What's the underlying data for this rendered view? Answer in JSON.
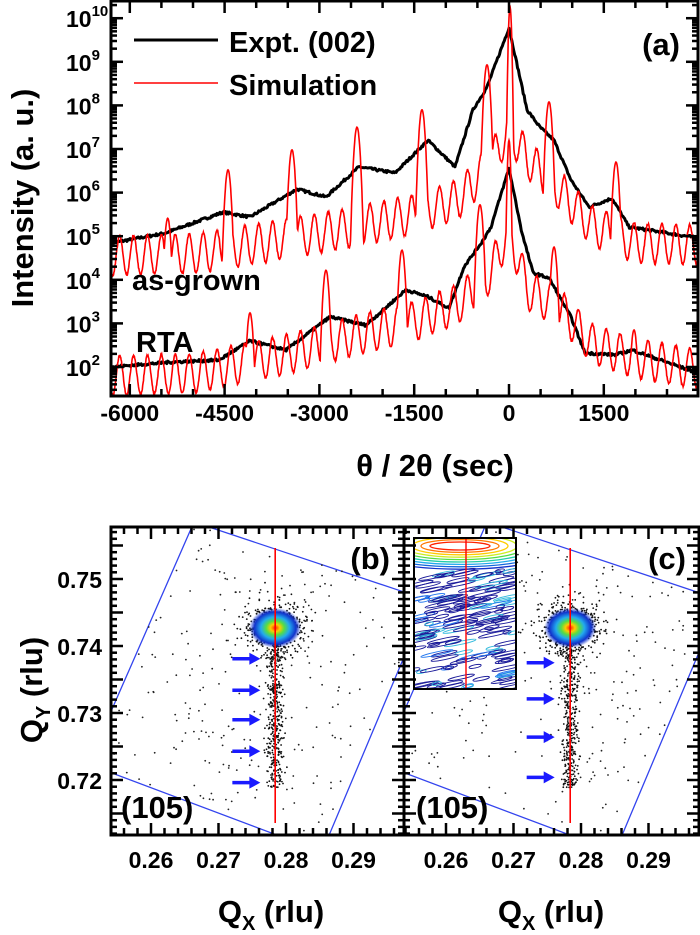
{
  "chart_data": [
    {
      "type": "line",
      "panel_label": "(a)",
      "xlabel": "θ / 2θ (sec)",
      "ylabel": "Intensity (a. u.)",
      "xlim": [
        -6300,
        2990
      ],
      "ylim_log10": [
        1.33,
        10.4
      ],
      "yscale": "log",
      "xticks": [
        "-6000",
        "-4500",
        "-3000",
        "-1500",
        "0",
        "1500"
      ],
      "xtick_values": [
        -6000,
        -4500,
        -3000,
        -1500,
        0,
        1500
      ],
      "ytick_base": "10",
      "ytick_exponents": [
        "2",
        "3",
        "4",
        "5",
        "6",
        "7",
        "8",
        "9",
        "10"
      ],
      "legend": {
        "position": "top-left",
        "entries": [
          "Expt. (002)",
          "Simulation"
        ]
      },
      "annotations": [
        "as-grown",
        "RTA"
      ],
      "colors": {
        "expt": "#000000",
        "simulation": "#ff0000"
      },
      "series": [
        {
          "name": "Expt. (002)",
          "group": "as-grown",
          "color": "#000000",
          "x": [
            -6300,
            -5443,
            -4525,
            -4098,
            -3354,
            -2896,
            -2373,
            -1804,
            -1282,
            -854,
            -570,
            -348,
            0,
            285,
            490,
            712,
            980,
            1266,
            1630,
            1900,
            2990
          ],
          "log10_y": [
            4.84,
            5.07,
            5.55,
            5.44,
            6.08,
            5.9,
            6.59,
            6.45,
            7.2,
            6.59,
            7.9,
            8.42,
            9.78,
            7.9,
            7.5,
            7.2,
            6.29,
            5.67,
            5.87,
            5.21,
            4.96
          ]
        },
        {
          "name": "Simulation",
          "group": "as-grown",
          "color": "#ff0000",
          "satellite_peaks_x": [
            -5400,
            -4446,
            -3434,
            -2405,
            -1377,
            -348,
            16,
            633,
            1693
          ],
          "satellite_peaks_log10_y": [
            5.41,
            6.52,
            6.98,
            7.5,
            7.9,
            8.93,
            10.26,
            8.08,
            6.7
          ],
          "baseline_x": [
            -6300,
            -5000,
            -4500,
            -3500,
            -2500,
            -1500,
            -800,
            -300,
            0,
            300,
            800,
            1300,
            2000,
            2990
          ],
          "baseline_log10_y": [
            4.7,
            4.75,
            4.85,
            5.1,
            5.35,
            5.65,
            6.0,
            6.8,
            7.6,
            6.9,
            6.2,
            5.4,
            5.0,
            4.95
          ]
        },
        {
          "name": "Expt. (002)",
          "group": "RTA",
          "color": "#000000",
          "x": [
            -6300,
            -5364,
            -4590,
            -4098,
            -3528,
            -2832,
            -2263,
            -1630,
            -1282,
            -950,
            -712,
            -427,
            -285,
            0,
            206,
            380,
            633,
            980,
            1202,
            1693,
            1946,
            2990
          ],
          "log10_y": [
            2.0,
            2.11,
            2.16,
            2.6,
            2.39,
            3.15,
            2.96,
            3.77,
            3.61,
            3.35,
            4.3,
            4.87,
            5.21,
            6.56,
            5.07,
            4.16,
            4.04,
            3.15,
            2.32,
            2.28,
            2.39,
            1.86
          ]
        },
        {
          "name": "Simulation",
          "group": "RTA",
          "color": "#ff0000",
          "satellite_peaks_x": [
            -4098,
            -2896,
            -1693,
            -459,
            0,
            712,
            1978
          ],
          "satellite_peaks_log10_y": [
            3.24,
            4.22,
            4.68,
            5.72,
            7.2,
            4.75,
            2.85
          ],
          "baseline_x": [
            -6300,
            -5000,
            -4500,
            -3500,
            -2500,
            -1500,
            -800,
            -300,
            0,
            300,
            800,
            1300,
            2000,
            2990
          ],
          "baseline_log10_y": [
            1.95,
            2.0,
            2.15,
            2.45,
            2.85,
            3.2,
            3.6,
            4.3,
            5.3,
            3.9,
            3.5,
            2.7,
            2.35,
            2.1
          ]
        }
      ]
    },
    {
      "type": "heatmap",
      "panel_label": "(b)",
      "reflection": "(105)",
      "xlabel": {
        "main": "Q",
        "sub": "X",
        "unit": " (rlu)"
      },
      "ylabel": {
        "main": "Q",
        "sub": "Y",
        "unit": " (rlu)"
      },
      "xlim": [
        0.2541,
        0.2972
      ],
      "ylim": [
        0.7118,
        0.7578
      ],
      "xticks": [
        "0.26",
        "0.27",
        "0.28",
        "0.29"
      ],
      "yticks": [
        "0.72",
        "0.73",
        "0.74",
        "0.75"
      ],
      "main_peak": {
        "qx": 0.2784,
        "qy": 0.7427
      },
      "reference_line_qx": 0.2784,
      "arrow_qy": [
        0.7381,
        0.7334,
        0.729,
        0.7243,
        0.7196
      ],
      "arrow_tip_qx": 0.2762,
      "colors": {
        "frame": "#3344ee",
        "line": "#ff0000",
        "arrow": "#1a1aff"
      }
    },
    {
      "type": "heatmap",
      "panel_label": "(c)",
      "reflection": "(105)",
      "xlabel": {
        "main": "Q",
        "sub": "X",
        "unit": " (rlu)"
      },
      "xlim": [
        0.2537,
        0.2977
      ],
      "ylim": [
        0.7118,
        0.7578
      ],
      "xticks": [
        "0.26",
        "0.27",
        "0.28",
        "0.29"
      ],
      "main_peak": {
        "qx": 0.2784,
        "qy": 0.7427
      },
      "reference_line_qx": 0.2784,
      "arrow_qy": [
        0.7375,
        0.7321,
        0.7264,
        0.7204
      ],
      "arrow_tip_qx": 0.2761,
      "has_inset": true,
      "colors": {
        "frame": "#3344ee",
        "line": "#ff0000",
        "arrow": "#1a1aff"
      }
    }
  ]
}
